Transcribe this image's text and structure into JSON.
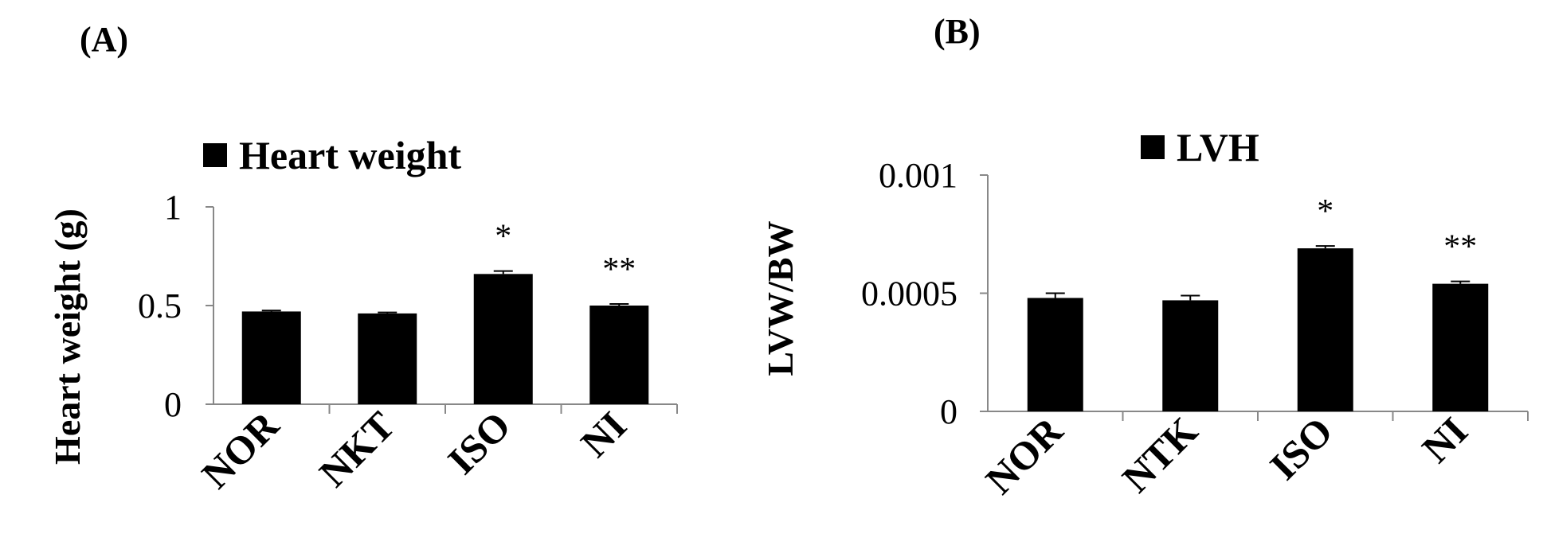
{
  "chart_data": [
    {
      "type": "bar",
      "panel_label": "(A)",
      "legend": "Heart weight",
      "ylabel": "Heart weight (g)",
      "xlabel": "",
      "ylim": [
        0,
        1
      ],
      "yticks": [
        0,
        0.5,
        1
      ],
      "ytick_labels": [
        "0",
        "0.5",
        "1"
      ],
      "categories": [
        "NOR",
        "NKT",
        "ISO",
        "NI"
      ],
      "series": [
        {
          "name": "Heart weight",
          "values": [
            0.47,
            0.46,
            0.66,
            0.5
          ],
          "errors": [
            0.005,
            0.005,
            0.015,
            0.008
          ]
        }
      ],
      "annotations": [
        "",
        "",
        "*",
        "**"
      ],
      "color": "#000000",
      "grid": false,
      "legend_position": "top"
    },
    {
      "type": "bar",
      "panel_label": "(B)",
      "legend": "LVH",
      "ylabel": "LVW/BW",
      "xlabel": "",
      "ylim": [
        0,
        0.001
      ],
      "yticks": [
        0,
        0.0005,
        0.001
      ],
      "ytick_labels": [
        "0",
        "0.0005",
        "0.001"
      ],
      "categories": [
        "NOR",
        "NTK",
        "ISO",
        "NI"
      ],
      "series": [
        {
          "name": "LVH",
          "values": [
            0.00048,
            0.00047,
            0.00069,
            0.00054
          ],
          "errors": [
            2e-05,
            2e-05,
            1e-05,
            1e-05
          ]
        }
      ],
      "annotations": [
        "",
        "",
        "*",
        "**"
      ],
      "color": "#000000",
      "grid": false,
      "legend_position": "top"
    }
  ]
}
